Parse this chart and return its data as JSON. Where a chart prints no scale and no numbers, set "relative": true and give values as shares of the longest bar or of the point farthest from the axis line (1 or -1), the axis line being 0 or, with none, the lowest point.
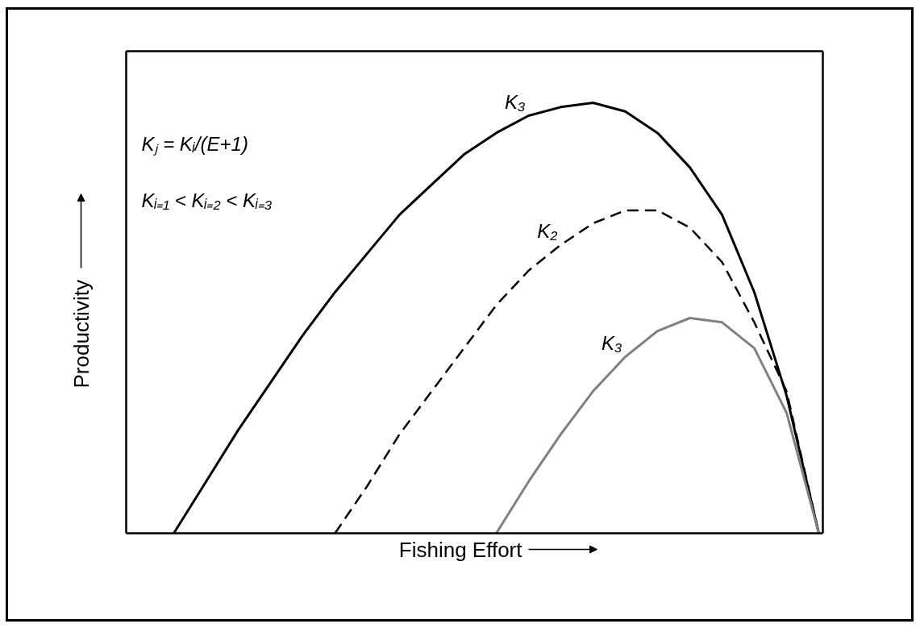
{
  "chart_data": {
    "type": "line",
    "relative": true,
    "tick_labels": false,
    "line_style": "solid",
    "xlabel": "Fishing Effort",
    "ylabel": "Productivity",
    "annotations": [
      "Kⱼ = Kᵢ/(E+1)",
      "Kᵢ₌₁ < Kᵢ₌₂ < Kᵢ₌₃"
    ],
    "categories": [
      null,
      null,
      null,
      null,
      null,
      null,
      null,
      null,
      null,
      null,
      null,
      null,
      null,
      null,
      null,
      null,
      null,
      null,
      null,
      null,
      null
    ],
    "series": [
      {
        "name": "K₃",
        "color": "#000000",
        "values": [
          0,
          0.12,
          0.24,
          0.35,
          0.46,
          0.56,
          0.65,
          0.74,
          0.81,
          0.88,
          0.93,
          0.97,
          0.99,
          1.0,
          0.98,
          0.93,
          0.85,
          0.74,
          0.56,
          0.32,
          0
        ]
      },
      {
        "name": "K₂",
        "color": "#000000",
        "line_style": "dashed",
        "values": [
          null,
          null,
          null,
          null,
          null,
          0,
          0.11,
          0.23,
          0.33,
          0.43,
          0.53,
          0.61,
          0.67,
          0.72,
          0.75,
          0.75,
          0.71,
          0.63,
          0.49,
          0.33,
          0
        ]
      },
      {
        "name": "K₃",
        "color": "#808080",
        "values": [
          null,
          null,
          null,
          null,
          null,
          null,
          null,
          null,
          null,
          null,
          0,
          0.12,
          0.23,
          0.33,
          0.41,
          0.47,
          0.5,
          0.49,
          0.43,
          0.28,
          0
        ]
      }
    ]
  }
}
